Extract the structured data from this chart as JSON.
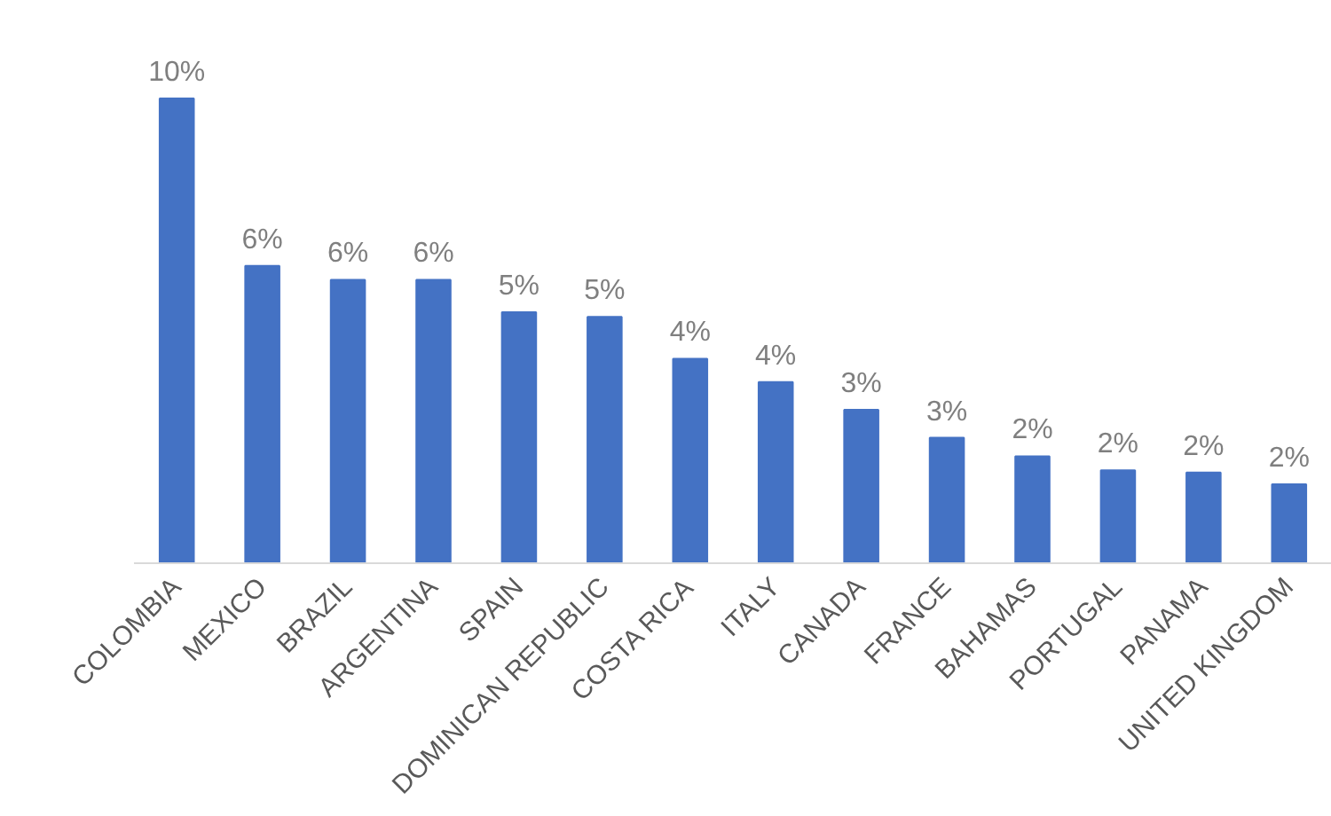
{
  "chart_data": {
    "type": "bar",
    "categories": [
      "COLOMBIA",
      "MEXICO",
      "BRAZIL",
      "ARGENTINA",
      "SPAIN",
      "DOMINICAN REPUBLIC",
      "COSTA RICA",
      "ITALY",
      "CANADA",
      "FRANCE",
      "BAHAMAS",
      "PORTUGAL",
      "PANAMA",
      "UNITED KINGDOM"
    ],
    "values": [
      10.0,
      6.4,
      6.1,
      6.1,
      5.4,
      5.3,
      4.4,
      3.9,
      3.3,
      2.7,
      2.3,
      2.0,
      1.95,
      1.7
    ],
    "value_labels": [
      "10%",
      "6%",
      "6%",
      "6%",
      "5%",
      "5%",
      "4%",
      "4%",
      "3%",
      "3%",
      "2%",
      "2%",
      "2%",
      "2%"
    ],
    "color": "#4472c4",
    "grid": false
  }
}
